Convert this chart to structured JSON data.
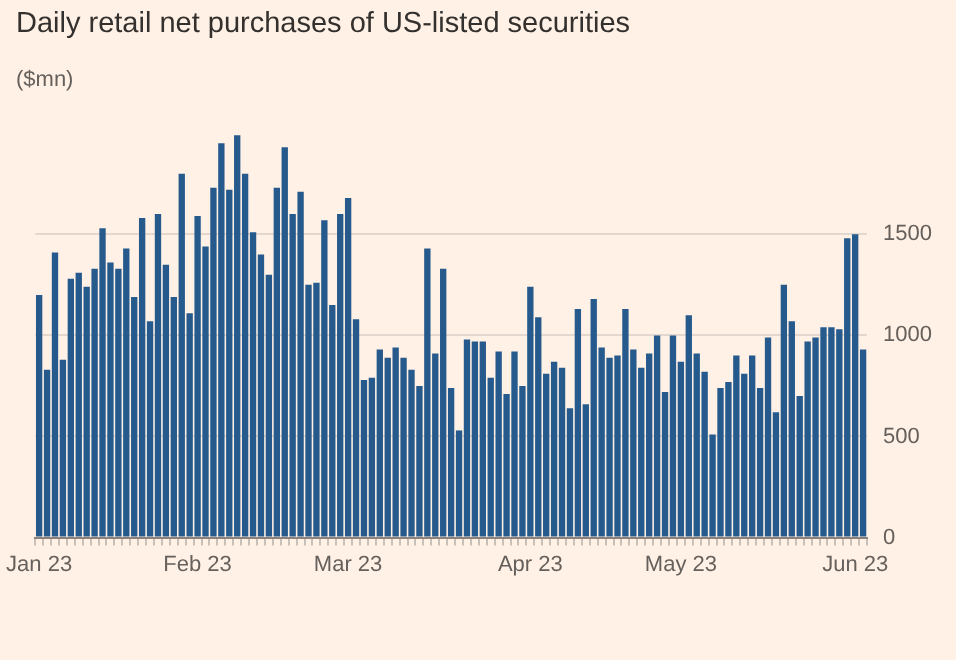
{
  "chart_data": {
    "type": "bar",
    "title": "Daily retail net purchases of US-listed securities",
    "subtitle": "($mn)",
    "categories": [
      "Jan 23",
      null,
      null,
      null,
      null,
      null,
      null,
      null,
      null,
      null,
      null,
      null,
      null,
      null,
      null,
      null,
      null,
      null,
      null,
      null,
      "Feb 23",
      null,
      null,
      null,
      null,
      null,
      null,
      null,
      null,
      null,
      null,
      null,
      null,
      null,
      null,
      null,
      null,
      null,
      null,
      "Mar 23",
      null,
      null,
      null,
      null,
      null,
      null,
      null,
      null,
      null,
      null,
      null,
      null,
      null,
      null,
      null,
      null,
      null,
      null,
      null,
      null,
      null,
      null,
      "Apr 23",
      null,
      null,
      null,
      null,
      null,
      null,
      null,
      null,
      null,
      null,
      null,
      null,
      null,
      null,
      null,
      null,
      null,
      null,
      "May 23",
      null,
      null,
      null,
      null,
      null,
      null,
      null,
      null,
      null,
      null,
      null,
      null,
      null,
      null,
      null,
      null,
      null,
      null,
      null,
      null,
      null,
      "Jun 23",
      null
    ],
    "values": [
      1200,
      830,
      1410,
      880,
      1280,
      1310,
      1240,
      1330,
      1530,
      1360,
      1330,
      1430,
      1190,
      1580,
      1070,
      1600,
      1350,
      1190,
      1800,
      1110,
      1590,
      1440,
      1730,
      1950,
      1720,
      1990,
      1800,
      1510,
      1400,
      1300,
      1730,
      1930,
      1600,
      1710,
      1250,
      1260,
      1570,
      1150,
      1600,
      1680,
      1080,
      780,
      790,
      930,
      890,
      940,
      890,
      830,
      750,
      1430,
      910,
      1330,
      740,
      530,
      980,
      970,
      970,
      790,
      920,
      710,
      920,
      750,
      1240,
      1090,
      810,
      870,
      840,
      640,
      1130,
      660,
      1180,
      940,
      890,
      900,
      1130,
      930,
      840,
      910,
      1000,
      720,
      1000,
      870,
      1100,
      910,
      820,
      510,
      740,
      770,
      900,
      810,
      900,
      740,
      990,
      620,
      1250,
      1070,
      700,
      970,
      990,
      1040,
      1040,
      1030,
      1480,
      1500,
      930
    ],
    "color": "#265a8c",
    "ylim": [
      0,
      2000
    ],
    "yticks": [
      0,
      500,
      1000,
      1500
    ],
    "grid": "y",
    "legend": false
  }
}
